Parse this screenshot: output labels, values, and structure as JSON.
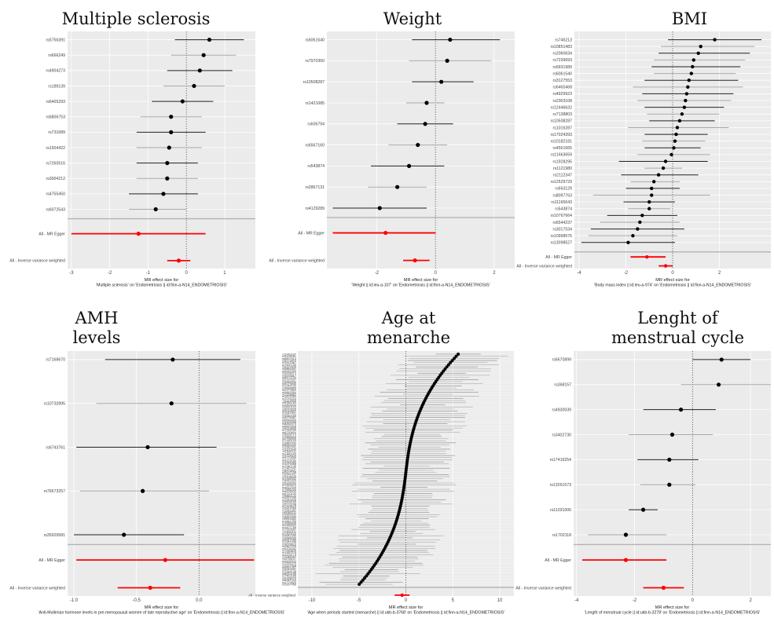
{
  "colors": {
    "panel_bg": "#ebebeb",
    "grid": "#ffffff",
    "point": "#000000",
    "ci_dark": "#222222",
    "ci_light": "#aaaaaa",
    "summary": "#ff0000",
    "zero_line": "#555555",
    "divider": "#b3b3b3"
  },
  "chart_data": [
    {
      "type": "forest",
      "title": [
        "Multiple sclerosis"
      ],
      "xlabel": [
        "MR effect size for",
        "'Multiple sclerosis' on 'Endometriosis || id:finn-a-N14_ENDOMETRIOSIS'"
      ],
      "x_ticks": [
        -3,
        -2,
        -1,
        0,
        1
      ],
      "xlim": [
        -3.1,
        1.8
      ],
      "snps": [
        {
          "label": "rs5756391",
          "est": 0.6,
          "lo": -0.3,
          "hi": 1.5
        },
        {
          "label": "rs666249",
          "est": 0.45,
          "lo": -0.4,
          "hi": 1.3
        },
        {
          "label": "rs4904273",
          "est": 0.35,
          "lo": -0.5,
          "hi": 1.2
        },
        {
          "label": "rs189139",
          "est": 0.2,
          "lo": -0.6,
          "hi": 1.0
        },
        {
          "label": "rs6405293",
          "est": -0.1,
          "lo": -0.9,
          "hi": 0.7
        },
        {
          "label": "rs6806753",
          "est": -0.4,
          "lo": -1.2,
          "hi": 0.4
        },
        {
          "label": "rs731689",
          "est": -0.4,
          "lo": -1.3,
          "hi": 0.5
        },
        {
          "label": "rs1504422",
          "est": -0.45,
          "lo": -1.3,
          "hi": 0.4
        },
        {
          "label": "rs7260516",
          "est": -0.5,
          "lo": -1.3,
          "hi": 0.3
        },
        {
          "label": "rs3004212",
          "est": -0.5,
          "lo": -1.3,
          "hi": 0.3
        },
        {
          "label": "rs4755450",
          "est": -0.6,
          "lo": -1.5,
          "hi": 0.3
        },
        {
          "label": "rs6072543",
          "est": -0.8,
          "lo": -1.5,
          "hi": 0.0
        }
      ],
      "summaries": [
        {
          "label": "All - MR Egger",
          "est": -1.25,
          "lo": -3.0,
          "hi": 0.5
        },
        {
          "label": "All - Inverse variance weighted",
          "est": -0.2,
          "lo": -0.5,
          "hi": 0.1
        }
      ]
    },
    {
      "type": "forest",
      "title": [
        "Weight"
      ],
      "xlabel": [
        "MR effect size for",
        "'Weight || id:ieu-a-107' on 'Endometriosis || id:finn-a-N14_ENDOMETRIOSIS'"
      ],
      "x_ticks": [
        -2,
        0,
        2
      ],
      "xlim": [
        -3.7,
        2.7
      ],
      "snps": [
        {
          "label": "rs6061540",
          "est": 0.5,
          "lo": -0.8,
          "hi": 2.2
        },
        {
          "label": "rs7970350",
          "est": 0.4,
          "lo": -0.9,
          "hi": 1.9
        },
        {
          "label": "rs10508287",
          "est": 0.2,
          "lo": -0.8,
          "hi": 1.3
        },
        {
          "label": "rs1421085",
          "est": -0.3,
          "lo": -1.0,
          "hi": 0.3
        },
        {
          "label": "rs606794",
          "est": -0.35,
          "lo": -1.3,
          "hi": 0.6
        },
        {
          "label": "rs6567160",
          "est": -0.6,
          "lo": -1.6,
          "hi": 0.4
        },
        {
          "label": "rs543874",
          "est": -0.9,
          "lo": -2.2,
          "hi": 0.3
        },
        {
          "label": "rs2867131",
          "est": -1.3,
          "lo": -2.3,
          "hi": -0.3
        },
        {
          "label": "rs4129289",
          "est": -1.9,
          "lo": -3.5,
          "hi": -0.3
        }
      ],
      "summaries": [
        {
          "label": "All - MR Egger",
          "est": -1.7,
          "lo": -3.5,
          "hi": 0.0
        },
        {
          "label": "All - Inverse variance weighted",
          "est": -0.7,
          "lo": -1.1,
          "hi": -0.2
        }
      ]
    },
    {
      "type": "forest",
      "title": [
        "BMI"
      ],
      "xlabel": [
        "MR effect size for",
        "'Body mass index || id:ieu-a-974' on 'Endometriosis || id:finn-a-N14_ENDOMETRIOSIS'"
      ],
      "x_ticks": [
        -4,
        -2,
        0,
        2
      ],
      "xlim": [
        -4.2,
        4.2
      ],
      "snps": [
        {
          "label": "rs745213",
          "est": 1.8,
          "lo": -0.2,
          "hi": 3.8
        },
        {
          "label": "rs10851483",
          "est": 1.2,
          "lo": -0.5,
          "hi": 3.5
        },
        {
          "label": "rs2060634",
          "est": 1.1,
          "lo": -0.6,
          "hi": 3.3
        },
        {
          "label": "rs7239693",
          "est": 0.9,
          "lo": -0.8,
          "hi": 3.1
        },
        {
          "label": "rs9931989",
          "est": 0.85,
          "lo": -0.9,
          "hi": 2.9
        },
        {
          "label": "rs6061540",
          "est": 0.8,
          "lo": -0.8,
          "hi": 2.7
        },
        {
          "label": "rs3127553",
          "est": 0.7,
          "lo": -1.2,
          "hi": 2.8
        },
        {
          "label": "rs6465468",
          "est": 0.65,
          "lo": -1.7,
          "hi": 3.0
        },
        {
          "label": "rs4929923",
          "est": 0.6,
          "lo": -1.3,
          "hi": 2.6
        },
        {
          "label": "rs2303108",
          "est": 0.55,
          "lo": -1.5,
          "hi": 2.5
        },
        {
          "label": "rs12446632",
          "est": 0.5,
          "lo": -1.2,
          "hi": 2.2
        },
        {
          "label": "rs7138803",
          "est": 0.4,
          "lo": -1.1,
          "hi": 2.0
        },
        {
          "label": "rs10508287",
          "est": 0.3,
          "lo": -1.0,
          "hi": 1.8
        },
        {
          "label": "rs1016287",
          "est": 0.2,
          "lo": -1.9,
          "hi": 2.4
        },
        {
          "label": "rs17024393",
          "est": 0.15,
          "lo": -1.2,
          "hi": 1.5
        },
        {
          "label": "rs10182181",
          "est": 0.1,
          "lo": -1.3,
          "hi": 1.4
        },
        {
          "label": "rs4561665",
          "est": 0.05,
          "lo": -1.2,
          "hi": 1.2
        },
        {
          "label": "rs11663659",
          "est": -0.05,
          "lo": -1.5,
          "hi": 1.6
        },
        {
          "label": "rs1928295",
          "est": -0.3,
          "lo": -2.3,
          "hi": 1.5
        },
        {
          "label": "rs1121980",
          "est": -0.4,
          "lo": -1.2,
          "hi": 0.4
        },
        {
          "label": "rs2112347",
          "est": -0.6,
          "lo": -2.2,
          "hi": 1.1
        },
        {
          "label": "rs12529729",
          "est": -0.8,
          "lo": -1.8,
          "hi": 0.3
        },
        {
          "label": "rs663129",
          "est": -0.9,
          "lo": -2.0,
          "hi": 0.3
        },
        {
          "label": "rs8097763",
          "est": -0.9,
          "lo": -3.4,
          "hi": 1.6
        },
        {
          "label": "rs11165643",
          "est": -1.0,
          "lo": -2.1,
          "hi": 0.1
        },
        {
          "label": "rs543874",
          "est": -1.0,
          "lo": -1.9,
          "hi": -0.1
        },
        {
          "label": "rs10767664",
          "est": -1.3,
          "lo": -2.8,
          "hi": 0.2
        },
        {
          "label": "rs6544237",
          "est": -1.4,
          "lo": -3.1,
          "hi": 0.3
        },
        {
          "label": "rs3017534",
          "est": -1.5,
          "lo": -3.5,
          "hi": 0.5
        },
        {
          "label": "rs10968576",
          "est": -1.7,
          "lo": -3.6,
          "hi": 0.2
        },
        {
          "label": "rs13098527",
          "est": -1.9,
          "lo": -3.9,
          "hi": 0.1
        }
      ],
      "summaries": [
        {
          "label": "All - MR Egger",
          "est": -1.1,
          "lo": -1.8,
          "hi": -0.3
        },
        {
          "label": "All - Inverse variance weighted",
          "est": -0.3,
          "lo": -0.6,
          "hi": 0.0
        }
      ]
    },
    {
      "type": "forest",
      "title": [
        "AMH",
        "levels"
      ],
      "xlabel": [
        "MR effect size for",
        "'Anti-Mullerian hormone levels in pre-menopausal women of late reproductive age' on 'Endometriosis || id:finn-a-N14_ENDOMETRIOSIS'"
      ],
      "x_ticks": [
        -1.0,
        -0.5,
        0.0
      ],
      "xlim": [
        -1.05,
        0.45
      ],
      "snps": [
        {
          "label": "rs7168670",
          "est": -0.21,
          "lo": -0.75,
          "hi": 0.33
        },
        {
          "label": "rs10732895",
          "est": -0.22,
          "lo": -0.82,
          "hi": 0.38
        },
        {
          "label": "rs6743761",
          "est": -0.41,
          "lo": -0.98,
          "hi": 0.14
        },
        {
          "label": "rs76673257",
          "est": -0.45,
          "lo": -0.95,
          "hi": 0.08
        },
        {
          "label": "rs35929581",
          "est": -0.6,
          "lo": -1.0,
          "hi": -0.12
        }
      ],
      "summaries": [
        {
          "label": "All - MR Egger",
          "est": -0.27,
          "lo": -0.98,
          "hi": 0.44
        },
        {
          "label": "All - Inverse variance weighted",
          "est": -0.39,
          "lo": -0.65,
          "hi": -0.15
        }
      ]
    },
    {
      "type": "forest",
      "title": [
        "Age at",
        "menarche"
      ],
      "xlabel": [
        "MR effect size for",
        "'Age when periods started (menarche) || id:ukb-b-3768' on 'Endometriosis || id:finn-a-N14_ENDOMETRIOSIS'"
      ],
      "x_ticks": [
        -10,
        -5,
        0,
        5,
        10
      ],
      "xlim": [
        -11.5,
        11.5
      ],
      "snps": [],
      "summaries": [
        {
          "label": "All - Inverse variance weighted",
          "est": -0.4,
          "lo": -1.2,
          "hi": 0.4
        }
      ]
    },
    {
      "type": "forest",
      "title": [
        "Lenght of",
        "menstrual cycle"
      ],
      "xlabel": [
        "MR effect size for",
        "'Length of menstrual cycle || id:ukb-b-3278' on 'Endometriosis || id:finn-a-N14_ENDOMETRIOSIS'"
      ],
      "x_ticks": [
        -4,
        -2,
        0,
        2
      ],
      "xlim": [
        -4.1,
        2.7
      ],
      "snps": [
        {
          "label": "rs6670899",
          "est": 1.0,
          "lo": 0.0,
          "hi": 2.0
        },
        {
          "label": "rs368157",
          "est": 0.9,
          "lo": -0.4,
          "hi": 2.7
        },
        {
          "label": "rs4930039",
          "est": -0.4,
          "lo": -1.7,
          "hi": 0.8
        },
        {
          "label": "rs3402730",
          "est": -0.7,
          "lo": -2.2,
          "hi": 0.7
        },
        {
          "label": "rs17416254",
          "est": -0.8,
          "lo": -1.9,
          "hi": 0.2
        },
        {
          "label": "rs13261573",
          "est": -0.8,
          "lo": -1.8,
          "hi": 0.1
        },
        {
          "label": "rs11031006",
          "est": -1.7,
          "lo": -2.2,
          "hi": -1.2
        },
        {
          "label": "rs1702118",
          "est": -2.3,
          "lo": -3.6,
          "hi": -0.9
        }
      ],
      "summaries": [
        {
          "label": "All - MR Egger",
          "est": -2.3,
          "lo": -3.8,
          "hi": -0.9
        },
        {
          "label": "All - Inverse variance weighted",
          "est": -1.0,
          "lo": -1.7,
          "hi": -0.3
        }
      ]
    }
  ]
}
